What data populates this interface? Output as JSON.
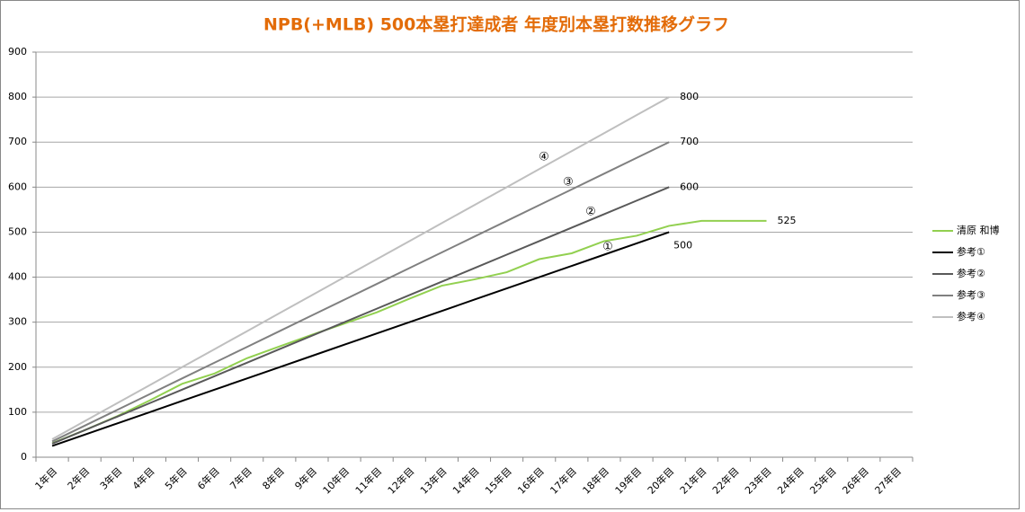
{
  "chart_data": {
    "type": "line",
    "title": "NPB(+MLB) 500本塁打達成者 年度別本塁打数推移グラフ",
    "categories": [
      "1年目",
      "2年目",
      "3年目",
      "4年目",
      "5年目",
      "6年目",
      "7年目",
      "8年目",
      "9年目",
      "10年目",
      "11年目",
      "12年目",
      "13年目",
      "14年目",
      "15年目",
      "16年目",
      "17年目",
      "18年目",
      "19年目",
      "20年目",
      "21年目",
      "22年目",
      "23年目",
      "24年目",
      "25年目",
      "26年目",
      "27年目"
    ],
    "series": [
      {
        "name": "清原 和博",
        "color": "#92d050",
        "values": [
          31,
          60,
          91,
          126,
          163,
          186,
          220,
          246,
          272,
          297,
          322,
          352,
          381,
          395,
          411,
          440,
          453,
          480,
          492,
          514,
          525,
          525,
          525,
          null,
          null,
          null,
          null
        ]
      },
      {
        "name": "参考①",
        "color": "#000000",
        "values": [
          25,
          50,
          75,
          100,
          125,
          150,
          175,
          200,
          225,
          250,
          275,
          300,
          325,
          350,
          375,
          400,
          425,
          450,
          475,
          500,
          null,
          null,
          null,
          null,
          null,
          null,
          null
        ]
      },
      {
        "name": "参考②",
        "color": "#595959",
        "values": [
          30,
          60,
          90,
          120,
          150,
          180,
          210,
          240,
          270,
          300,
          330,
          360,
          390,
          420,
          450,
          480,
          510,
          540,
          570,
          600,
          null,
          null,
          null,
          null,
          null,
          null,
          null
        ]
      },
      {
        "name": "参考③",
        "color": "#808080",
        "values": [
          35,
          70,
          105,
          140,
          175,
          210,
          245,
          280,
          315,
          350,
          385,
          420,
          455,
          490,
          525,
          560,
          595,
          630,
          665,
          700,
          null,
          null,
          null,
          null,
          null,
          null,
          null
        ]
      },
      {
        "name": "参考④",
        "color": "#bfbfbf",
        "values": [
          40,
          80,
          120,
          160,
          200,
          240,
          280,
          320,
          360,
          400,
          440,
          480,
          520,
          560,
          600,
          640,
          680,
          720,
          760,
          800,
          null,
          null,
          null,
          null,
          null,
          null,
          null
        ]
      }
    ],
    "annotations": [
      "①",
      "②",
      "③",
      "④"
    ],
    "ylim": [
      0,
      900
    ],
    "yticks": [
      0,
      100,
      200,
      300,
      400,
      500,
      600,
      700,
      800,
      900
    ],
    "grid": true,
    "legend": "right"
  }
}
